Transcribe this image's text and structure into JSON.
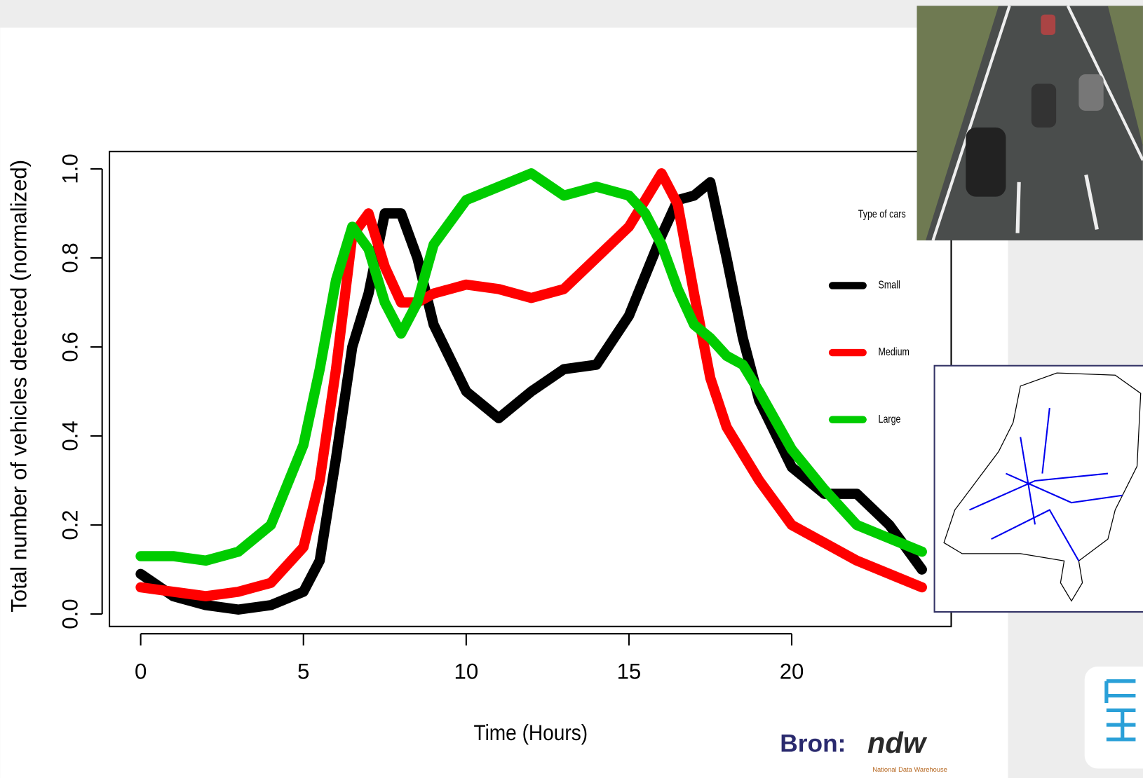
{
  "chart_data": {
    "type": "line",
    "y_label": "Total number of vehicles detected (normalized)",
    "x_label": "Time (Hours)",
    "legend_title": "Type of cars",
    "legend": "right",
    "x": [
      0,
      1,
      2,
      3,
      4,
      5,
      5.5,
      6,
      6.5,
      7,
      7.5,
      8,
      8.5,
      9,
      10,
      11,
      12,
      13,
      14,
      15,
      15.5,
      16,
      16.5,
      17,
      17.5,
      18,
      18.5,
      19,
      20,
      21,
      22,
      23,
      24
    ],
    "series": [
      {
        "name": "Small",
        "color": "#000000",
        "values": [
          0.09,
          0.04,
          0.02,
          0.01,
          0.02,
          0.05,
          0.12,
          0.35,
          0.6,
          0.72,
          0.9,
          0.9,
          0.8,
          0.65,
          0.5,
          0.44,
          0.5,
          0.55,
          0.56,
          0.67,
          0.76,
          0.85,
          0.93,
          0.94,
          0.97,
          0.8,
          0.62,
          0.48,
          0.33,
          0.27,
          0.27,
          0.2,
          0.1
        ]
      },
      {
        "name": "Medium",
        "color": "#ff0000",
        "values": [
          0.06,
          0.05,
          0.04,
          0.05,
          0.07,
          0.15,
          0.3,
          0.55,
          0.85,
          0.9,
          0.78,
          0.7,
          0.7,
          0.72,
          0.74,
          0.73,
          0.71,
          0.73,
          0.8,
          0.87,
          0.93,
          0.99,
          0.92,
          0.72,
          0.53,
          0.42,
          0.36,
          0.3,
          0.2,
          0.16,
          0.12,
          0.09,
          0.06
        ]
      },
      {
        "name": "Large",
        "color": "#00cc00",
        "values": [
          0.13,
          0.13,
          0.12,
          0.14,
          0.2,
          0.38,
          0.55,
          0.75,
          0.87,
          0.82,
          0.7,
          0.63,
          0.7,
          0.83,
          0.93,
          0.96,
          0.99,
          0.94,
          0.96,
          0.94,
          0.9,
          0.83,
          0.73,
          0.65,
          0.62,
          0.58,
          0.56,
          0.5,
          0.37,
          0.28,
          0.2,
          0.17,
          0.14
        ]
      }
    ],
    "xlim": [
      -0.96,
      24.9
    ],
    "ylim": [
      -0.028,
      1.039
    ],
    "xticks": [
      0,
      5,
      10,
      15,
      20
    ],
    "yticks": [
      {
        "value": 0,
        "label": "0.0"
      },
      {
        "value": 0.2,
        "label": "0.2"
      },
      {
        "value": 0.4,
        "label": "0.4"
      },
      {
        "value": 0.6,
        "label": "0.6"
      },
      {
        "value": 0.8,
        "label": "0.8"
      },
      {
        "value": 1,
        "label": "1.0"
      }
    ]
  },
  "source": {
    "label": "Bron:",
    "logo": "ndw",
    "logo_caption": "National Data Warehouse"
  }
}
